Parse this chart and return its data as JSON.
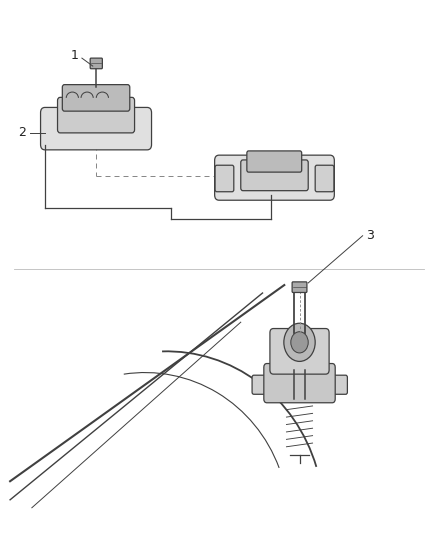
{
  "bg_color": "#ffffff",
  "line_color": "#404040",
  "dashed_color": "#888888",
  "label_color": "#222222",
  "fig_width": 4.38,
  "fig_height": 5.33,
  "dpi": 100
}
